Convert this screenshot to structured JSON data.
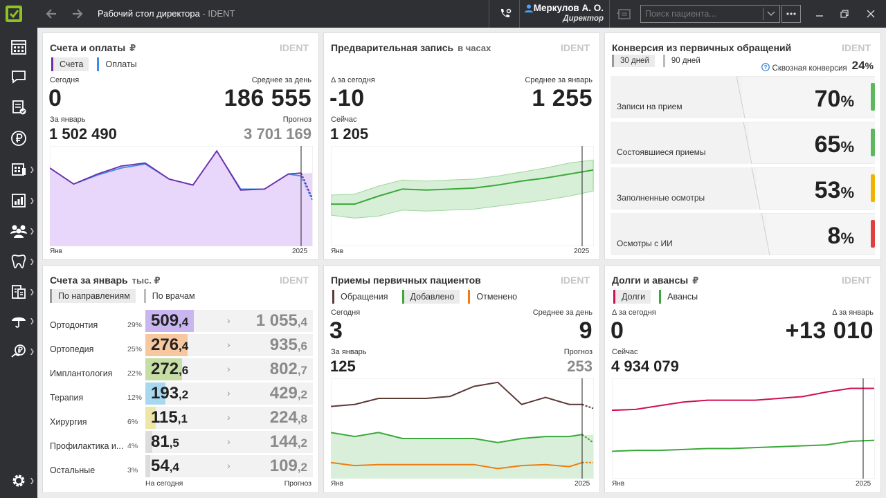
{
  "window": {
    "title": "Рабочий стол директора",
    "title_sep": " - ",
    "brand": "IDENT"
  },
  "user": {
    "name": "Меркулов А. О.",
    "role": "Директор"
  },
  "search": {
    "placeholder": "Поиск пациента..."
  },
  "sidebar": {
    "items": [
      {
        "icon": "calendar-grid-icon",
        "has_arrow": false
      },
      {
        "icon": "chat-icon",
        "has_arrow": false
      },
      {
        "icon": "checklist-icon",
        "has_arrow": false
      },
      {
        "icon": "ruble-icon",
        "has_arrow": false
      },
      {
        "icon": "schedule-icon",
        "has_arrow": true
      },
      {
        "icon": "reports-icon",
        "has_arrow": true
      },
      {
        "icon": "patients-icon",
        "has_arrow": true
      },
      {
        "icon": "tooth-icon",
        "has_arrow": true
      },
      {
        "icon": "documents-icon",
        "has_arrow": true
      },
      {
        "icon": "umbrella-icon",
        "has_arrow": true
      },
      {
        "icon": "payment-icon",
        "has_arrow": true
      }
    ],
    "settings_icon": "gear-icon"
  },
  "cards": {
    "invoices": {
      "title": "Счета и оплаты",
      "unit": "₽",
      "brand": "IDENT",
      "legend": [
        {
          "label": "Счета",
          "color": "#6f2da8",
          "active": true
        },
        {
          "label": "Оплаты",
          "color": "#3a8ee6",
          "active": false
        }
      ],
      "today_label": "Сегодня",
      "today_value": "0",
      "avg_label": "Среднее за день",
      "avg_value": "186 555",
      "month_label": "За январь",
      "month_value": "1 502 490",
      "forecast_label": "Прогноз",
      "forecast_value": "3 701 169",
      "x_start": "Янв",
      "x_end": "2025"
    },
    "prebook": {
      "title": "Предварительная запись",
      "unit": "в часах",
      "brand": "IDENT",
      "delta_label": "Δ за сегодня",
      "delta_value": "-10",
      "avg_label": "Среднее за январь",
      "avg_value": "1 255",
      "now_label": "Сейчас",
      "now_value": "1 205",
      "x_start": "Янв",
      "x_end": "2025"
    },
    "conversion": {
      "title": "Конверсия из первичных обращений",
      "brand": "IDENT",
      "tabs": [
        {
          "label": "30 дней",
          "active": true
        },
        {
          "label": "90 дней",
          "active": false
        }
      ],
      "total_label": "Сквозная конверсия",
      "total_value": "24",
      "pct_sign": "%",
      "rows": [
        {
          "label": "Записи на прием",
          "value": "70",
          "color": "#5cb85c"
        },
        {
          "label": "Состоявшиеся приемы",
          "value": "65",
          "color": "#5cb85c"
        },
        {
          "label": "Заполненные осмотры",
          "value": "53",
          "color": "#f0b400"
        },
        {
          "label": "Осмотры с ИИ",
          "value": "8",
          "color": "#e04040"
        }
      ]
    },
    "january": {
      "title": "Счета за январь",
      "unit": "тыс. ₽",
      "brand": "IDENT",
      "tabs": [
        {
          "label": "По направлениям",
          "active": true
        },
        {
          "label": "По врачам",
          "active": false
        }
      ],
      "rows": [
        {
          "name": "Ортодонтия",
          "pct": "29%",
          "int": "509",
          "dec": ",4",
          "f_int": "1 055",
          "f_dec": ",4",
          "color": "#c9b6ef",
          "share": 0.29
        },
        {
          "name": "Ортопедия",
          "pct": "25%",
          "int": "276",
          "dec": ",4",
          "f_int": "935",
          "f_dec": ",6",
          "color": "#f7c8a0",
          "share": 0.25
        },
        {
          "name": "Имплантология",
          "pct": "22%",
          "int": "272",
          "dec": ",6",
          "f_int": "802",
          "f_dec": ",7",
          "color": "#c6dea6",
          "share": 0.22
        },
        {
          "name": "Терапия",
          "pct": "12%",
          "int": "193",
          "dec": ",2",
          "f_int": "429",
          "f_dec": ",2",
          "color": "#a7d8f0",
          "share": 0.12
        },
        {
          "name": "Хирургия",
          "pct": "6%",
          "int": "115",
          "dec": ",1",
          "f_int": "224",
          "f_dec": ",8",
          "color": "#eee6a6",
          "share": 0.06
        },
        {
          "name": "Профилактика и...",
          "pct": "4%",
          "int": "81",
          "dec": ",5",
          "f_int": "144",
          "f_dec": ",2",
          "color": "#dcdcdc",
          "share": 0.04
        },
        {
          "name": "Остальные",
          "pct": "3%",
          "int": "54",
          "dec": ",4",
          "f_int": "109",
          "f_dec": ",2",
          "color": "#dcdcdc",
          "share": 0.03
        }
      ],
      "footer_left": "На сегодня",
      "footer_right": "Прогноз"
    },
    "primary": {
      "title": "Приемы первичных пациентов",
      "brand": "IDENT",
      "legend": [
        {
          "label": "Обращения",
          "color": "#5b3a34",
          "active": false
        },
        {
          "label": "Добавлено",
          "color": "#3aa83a",
          "active": true
        },
        {
          "label": "Отменено",
          "color": "#f07c10",
          "active": false
        }
      ],
      "today_label": "Сегодня",
      "today_value": "3",
      "avg_label": "Среднее за день",
      "avg_value": "9",
      "month_label": "За январь",
      "month_value": "125",
      "forecast_label": "Прогноз",
      "forecast_value": "253",
      "x_start": "Янв",
      "x_end": "2025"
    },
    "debts": {
      "title": "Долги и авансы",
      "unit": "₽",
      "brand": "IDENT",
      "legend": [
        {
          "label": "Долги",
          "color": "#d0104c",
          "active": true
        },
        {
          "label": "Авансы",
          "color": "#3aa83a",
          "active": false
        }
      ],
      "delta_label": "Δ за сегодня",
      "delta_value": "0",
      "dmonth_label": "Δ за январь",
      "dmonth_value": "+13 010",
      "now_label": "Сейчас",
      "now_value": "4 934 079",
      "x_start": "Янв",
      "x_end": "2025"
    }
  },
  "chart_data": [
    {
      "type": "area",
      "title": "Счета и оплаты",
      "x": [
        "1",
        "2",
        "3",
        "4",
        "5",
        "6",
        "7",
        "8",
        "9",
        "10",
        "11",
        "12"
      ],
      "x_start_label": "Янв",
      "x_end_label": "2025",
      "series": [
        {
          "name": "Счета",
          "values": [
            78,
            62,
            72,
            80,
            83,
            67,
            61,
            95,
            56,
            57,
            72,
            73
          ],
          "forecast_from": 11,
          "forecast": [
            73,
            48
          ]
        },
        {
          "name": "Оплаты",
          "values": [
            78,
            62,
            71,
            78,
            82,
            67,
            61,
            95,
            57,
            57,
            72,
            70
          ],
          "forecast_from": 11,
          "forecast": [
            70,
            46
          ]
        }
      ],
      "ylim": [
        0,
        100
      ]
    },
    {
      "type": "area",
      "title": "Предварительная запись",
      "x": [
        "1",
        "2",
        "3",
        "4",
        "5",
        "6",
        "7",
        "8",
        "9",
        "10",
        "11",
        "12"
      ],
      "series": [
        {
          "name": "",
          "values": [
            42,
            42,
            50,
            57,
            56,
            57,
            58,
            61,
            65,
            68,
            72,
            76
          ]
        },
        {
          "name": "band_low",
          "values": [
            31,
            28,
            30,
            36,
            35,
            36,
            37,
            40,
            43,
            46,
            50,
            55
          ]
        },
        {
          "name": "band_high",
          "values": [
            51,
            52,
            60,
            66,
            65,
            66,
            67,
            70,
            74,
            78,
            83,
            86
          ]
        }
      ],
      "ylim": [
        0,
        100
      ]
    },
    {
      "type": "line",
      "title": "Приемы первичных пациентов",
      "x": [
        "1",
        "2",
        "3",
        "4",
        "5",
        "6",
        "7",
        "8",
        "9",
        "10",
        "11",
        "12"
      ],
      "series": [
        {
          "name": "Обращения",
          "values": [
            72,
            74,
            80,
            80,
            80,
            82,
            92,
            96,
            74,
            81,
            74,
            74
          ],
          "forecast_from": 11,
          "forecast": [
            74,
            70
          ]
        },
        {
          "name": "Добавлено",
          "values": [
            46,
            42,
            46,
            40,
            40,
            40,
            40,
            36,
            40,
            42,
            42,
            44
          ],
          "forecast_from": 11,
          "forecast": [
            44,
            36
          ]
        },
        {
          "name": "Отменено",
          "values": [
            16,
            13,
            14,
            14,
            14,
            14,
            14,
            10,
            13,
            14,
            12,
            16
          ],
          "forecast_from": 11,
          "forecast": [
            16,
            16
          ]
        }
      ],
      "ylim": [
        0,
        100
      ]
    },
    {
      "type": "line",
      "title": "Долги и авансы",
      "x": [
        "1",
        "2",
        "3",
        "4",
        "5",
        "6",
        "7",
        "8",
        "9",
        "10",
        "11",
        "12"
      ],
      "series": [
        {
          "name": "Долги",
          "values": [
            75,
            76,
            80,
            84,
            86,
            86,
            86,
            88,
            90,
            95,
            99,
            99
          ]
        },
        {
          "name": "Авансы",
          "values": [
            30,
            31,
            31,
            32,
            33,
            33,
            34,
            35,
            36,
            37,
            41,
            42
          ]
        }
      ],
      "ylim": [
        0,
        110
      ]
    }
  ]
}
